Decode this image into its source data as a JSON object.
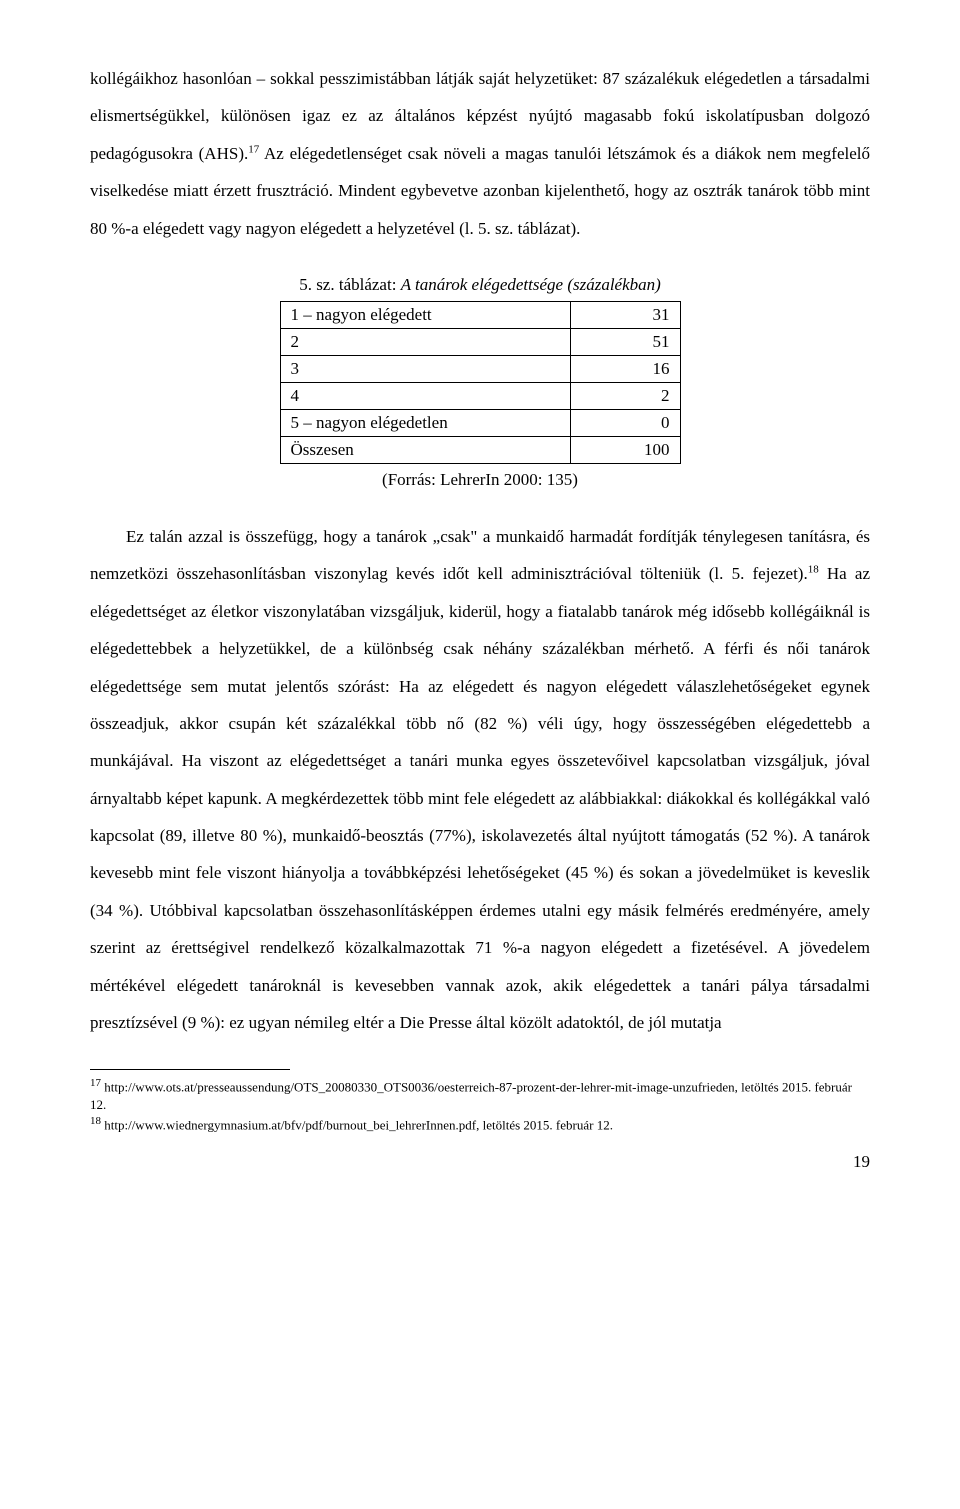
{
  "p1": "kollégáikhoz hasonlóan – sokkal pesszimistábban látják saját helyzetüket: 87 százalékuk elégedetlen a társadalmi elismertségükkel, különösen igaz ez az általános képzést nyújtó magasabb fokú iskolatípusban dolgozó pedagógusokra (AHS).",
  "p1_sup": "17",
  "p1b": " Az elégedetlenséget csak növeli a magas tanulói létszámok és a diákok nem megfelelő viselkedése miatt érzett frusztráció. Mindent egybevetve azonban kijelenthető, hogy az osztrák tanárok több mint 80 %-a elégedett vagy nagyon elégedett a helyzetével (l. 5. sz. táblázat).",
  "table": {
    "caption_label": "5. sz. táblázat: ",
    "caption_title": "A tanárok elégedettsége (százalékban)",
    "rows": [
      {
        "label": "1 – nagyon elégedett",
        "value": "31"
      },
      {
        "label": "2",
        "value": "51"
      },
      {
        "label": "3",
        "value": "16"
      },
      {
        "label": "4",
        "value": "2"
      },
      {
        "label": "5 – nagyon elégedetlen",
        "value": "0"
      },
      {
        "label": "Összesen",
        "value": "100"
      }
    ],
    "source": "(Forrás: LehrerIn 2000: 135)"
  },
  "p2a": "Ez talán azzal is összefügg, hogy a tanárok „csak\" a munkaidő harmadát fordítják ténylegesen tanításra, és nemzetközi összehasonlításban viszonylag kevés időt kell adminisztrációval tölteniük (l. 5. fejezet).",
  "p2_sup": "18",
  "p2b": " Ha az elégedettséget az életkor viszonylatában vizsgáljuk, kiderül, hogy a fiatalabb tanárok még idősebb kollégáiknál is elégedettebbek a helyzetükkel, de a különbség csak néhány százalékban mérhető. A férfi és női tanárok elégedettsége sem mutat jelentős szórást: Ha az elégedett és nagyon elégedett válaszlehetőségeket egynek összeadjuk, akkor csupán két százalékkal több nő (82 %) véli úgy, hogy összességében elégedettebb a munkájával. Ha viszont az elégedettséget a tanári munka egyes összetevőivel kapcsolatban vizsgáljuk, jóval árnyaltabb képet kapunk. A megkérdezettek több mint fele elégedett az alábbiakkal: diákokkal és kollégákkal való kapcsolat (89, illetve 80 %), munkaidő-beosztás (77%), iskolavezetés által nyújtott támogatás (52 %). A tanárok kevesebb mint fele viszont hiányolja a továbbképzési lehetőségeket (45 %) és sokan a jövedelmüket is keveslik (34 %). Utóbbival kapcsolatban összehasonlításképpen érdemes utalni egy másik felmérés eredményére, amely szerint az érettségivel rendelkező közalkalmazottak 71 %-a nagyon elégedett a fizetésével. A jövedelem mértékével elégedett tanároknál is kevesebben vannak azok, akik elégedettek a tanári pálya társadalmi presztízsével (9 %): ez ugyan némileg eltér a Die Presse által közölt adatoktól, de jól mutatja",
  "footnotes": {
    "f17": "17",
    "f17_text": " http://www.ots.at/presseaussendung/OTS_20080330_OTS0036/oesterreich-87-prozent-der-lehrer-mit-image-unzufrieden, letöltés 2015. február 12.",
    "f18": "18",
    "f18_text": " http://www.wiednergymnasium.at/bfv/pdf/burnout_bei_lehrerInnen.pdf, letöltés 2015. február 12."
  },
  "page_number": "19"
}
